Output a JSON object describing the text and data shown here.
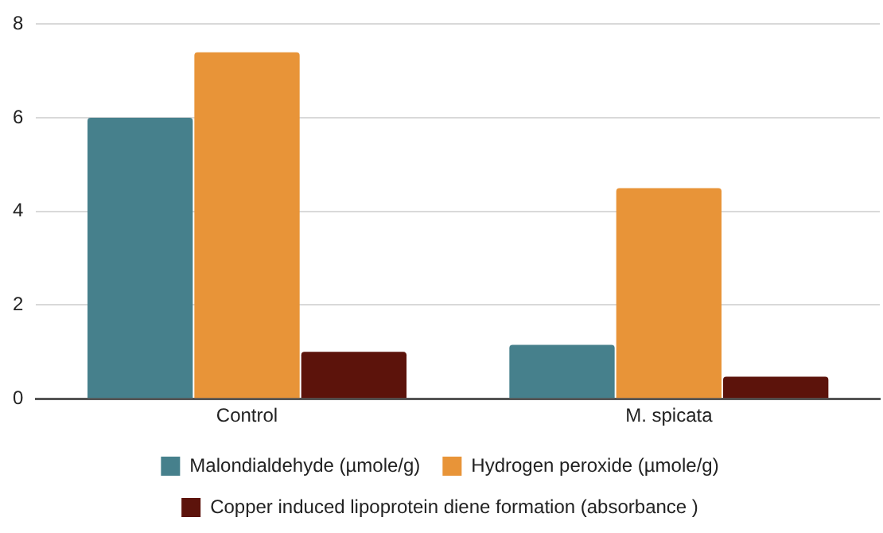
{
  "chart_data": {
    "type": "bar",
    "categories": [
      "Control",
      "M. spicata"
    ],
    "series": [
      {
        "name": "Malondialdehyde (µmole/g)",
        "color": "#46808c",
        "values": [
          6.0,
          1.15
        ]
      },
      {
        "name": "Hydrogen peroxide (µmole/g)",
        "color": "#e89438",
        "values": [
          7.4,
          4.5
        ]
      },
      {
        "name": "Copper induced lipoprotein diene formation (absorbance )",
        "color": "#5c130b",
        "values": [
          1.0,
          0.47
        ]
      }
    ],
    "ylim": [
      0,
      8
    ],
    "yticks": [
      0,
      2,
      4,
      6,
      8
    ],
    "grid": "y",
    "legend": "bottom"
  }
}
